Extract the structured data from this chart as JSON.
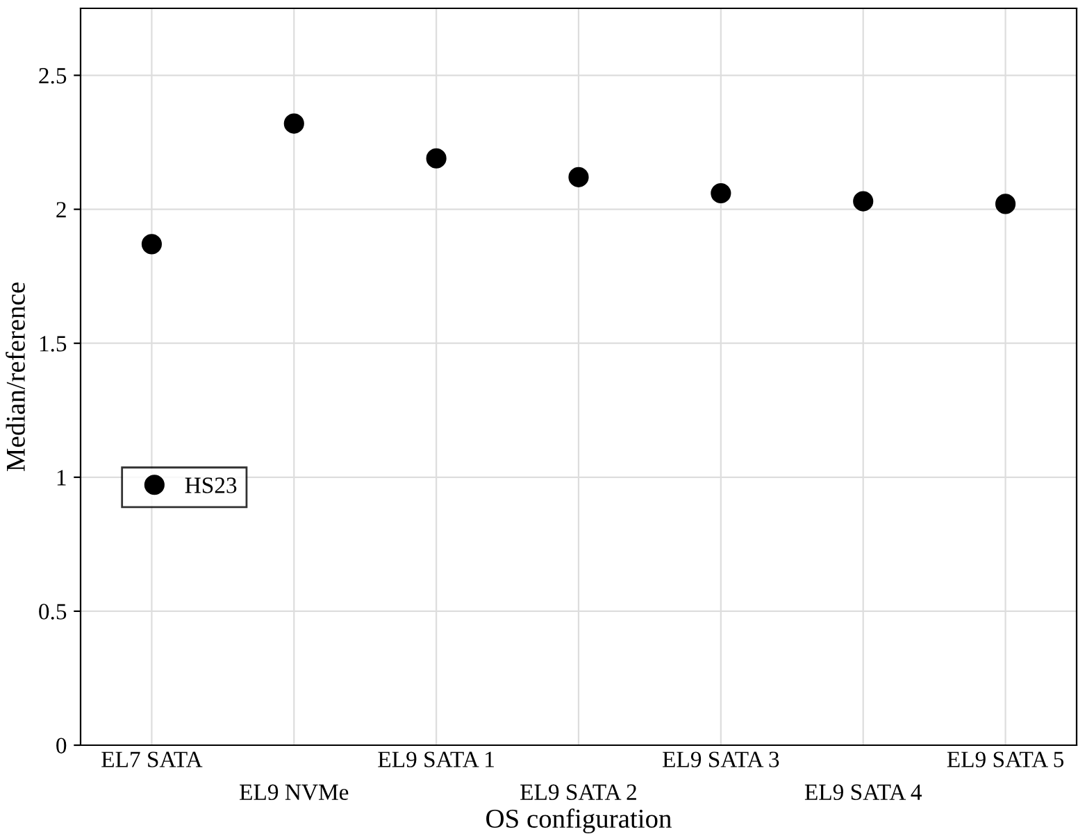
{
  "chart_data": {
    "type": "scatter",
    "xlabel": "OS configuration",
    "ylabel": "Median/reference",
    "categories": [
      "EL7 SATA",
      "EL9 NVMe",
      "EL9 SATA 1",
      "EL9 SATA 2",
      "EL9 SATA 3",
      "EL9 SATA 4",
      "EL9 SATA 5"
    ],
    "series": [
      {
        "name": "HS23",
        "color": "#000000",
        "values": [
          1.87,
          2.32,
          2.19,
          2.12,
          2.06,
          2.03,
          2.02
        ]
      }
    ],
    "ylim": [
      0,
      2.75
    ],
    "yticks": [
      0,
      0.5,
      1,
      1.5,
      2,
      2.5
    ],
    "grid": true,
    "legend": "left",
    "marker": "circle"
  }
}
